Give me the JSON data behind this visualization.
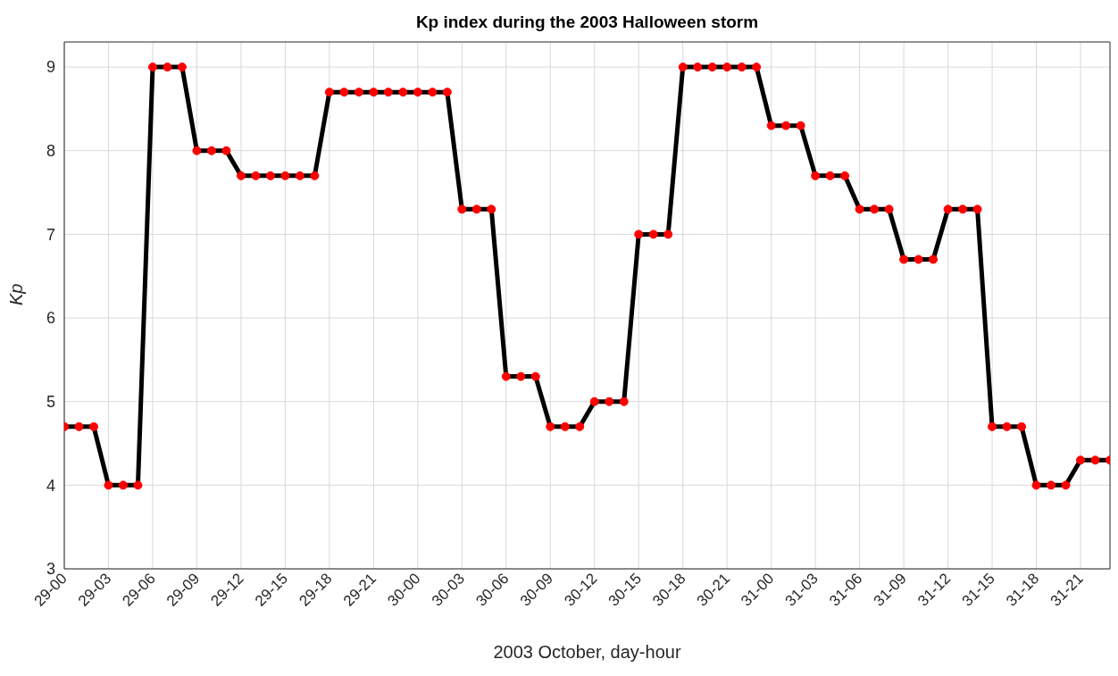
{
  "chart_data": {
    "type": "line",
    "title": "Kp index during the 2003 Halloween storm",
    "xlabel": "2003 October, day-hour",
    "ylabel": "Kp",
    "categories": [
      "29-00",
      null,
      null,
      "29-03",
      null,
      null,
      "29-06",
      null,
      null,
      "29-09",
      null,
      null,
      "29-12",
      null,
      null,
      "29-15",
      null,
      null,
      "29-18",
      null,
      null,
      "29-21",
      null,
      null,
      "30-00",
      null,
      null,
      "30-03",
      null,
      null,
      "30-06",
      null,
      null,
      "30-09",
      null,
      null,
      "30-12",
      null,
      null,
      "30-15",
      null,
      null,
      "30-18",
      null,
      null,
      "30-21",
      null,
      null,
      "31-00",
      null,
      null,
      "31-03",
      null,
      null,
      "31-06",
      null,
      null,
      "31-09",
      null,
      null,
      "31-12",
      null,
      null,
      "31-15",
      null,
      null,
      "31-18",
      null,
      null,
      "31-21",
      null,
      null
    ],
    "series": [
      {
        "color": "#000000",
        "values": [
          4.7,
          4.7,
          4.7,
          4,
          4,
          4,
          9,
          9,
          9,
          8,
          8,
          8,
          7.7,
          7.7,
          7.7,
          7.7,
          7.7,
          7.7,
          8.7,
          8.7,
          8.7,
          8.7,
          8.7,
          8.7,
          8.7,
          8.7,
          8.7,
          7.3,
          7.3,
          7.3,
          5.3,
          5.3,
          5.3,
          4.7,
          4.7,
          4.7,
          5,
          5,
          5,
          7,
          7,
          7,
          9,
          9,
          9,
          9,
          9,
          9,
          8.3,
          8.3,
          8.3,
          7.7,
          7.7,
          7.7,
          7.3,
          7.3,
          7.3,
          6.7,
          6.7,
          6.7,
          7.3,
          7.3,
          7.3,
          4.7,
          4.7,
          4.7,
          4,
          4,
          4,
          4.3,
          4.3,
          4.3
        ],
        "colors": [
          "#ff0000",
          "#ff0000",
          "#ff0000",
          "#ff0000",
          "#ff0000",
          "#ff0000",
          "#ff0000",
          "#ff0000",
          "#ff0000",
          "#ff0000",
          "#ff0000",
          "#ff0000",
          "#ff0000",
          "#ff0000",
          "#ff0000",
          "#ff0000",
          "#ff0000",
          "#ff0000",
          "#ff0000",
          "#ff0000",
          "#ff0000",
          "#ff0000",
          "#ff0000",
          "#ff0000",
          "#ff0000",
          "#ff0000",
          "#ff0000",
          "#ff0000",
          "#ff0000",
          "#ff0000",
          "#ff0000",
          "#ff0000",
          "#ff0000",
          "#ff0000",
          "#ff0000",
          "#ff0000",
          "#ff0000",
          "#ff0000",
          "#ff0000",
          "#ff0000",
          "#ff0000",
          "#ff0000",
          "#ff0000",
          "#ff0000",
          "#ff0000",
          "#ff0000",
          "#ff0000",
          "#ff0000",
          "#ff0000",
          "#ff0000",
          "#ff0000",
          "#ff0000",
          "#ff0000",
          "#ff0000",
          "#ff0000",
          "#ff0000",
          "#ff0000",
          "#ff0000",
          "#ff0000",
          "#ff0000",
          "#ff0000",
          "#ff0000",
          "#ff0000",
          "#ff0000",
          "#ff0000",
          "#ff0000",
          "#ff0000",
          "#ff0000",
          "#ff0000",
          "#ff0000",
          "#ff0000",
          "#ff0000"
        ]
      }
    ],
    "ylim": [
      3,
      9.3
    ],
    "yticks": [
      3,
      4,
      5,
      6,
      7,
      8,
      9
    ],
    "grid": true,
    "marker": "circle",
    "line_style": "solid",
    "legend": false
  }
}
